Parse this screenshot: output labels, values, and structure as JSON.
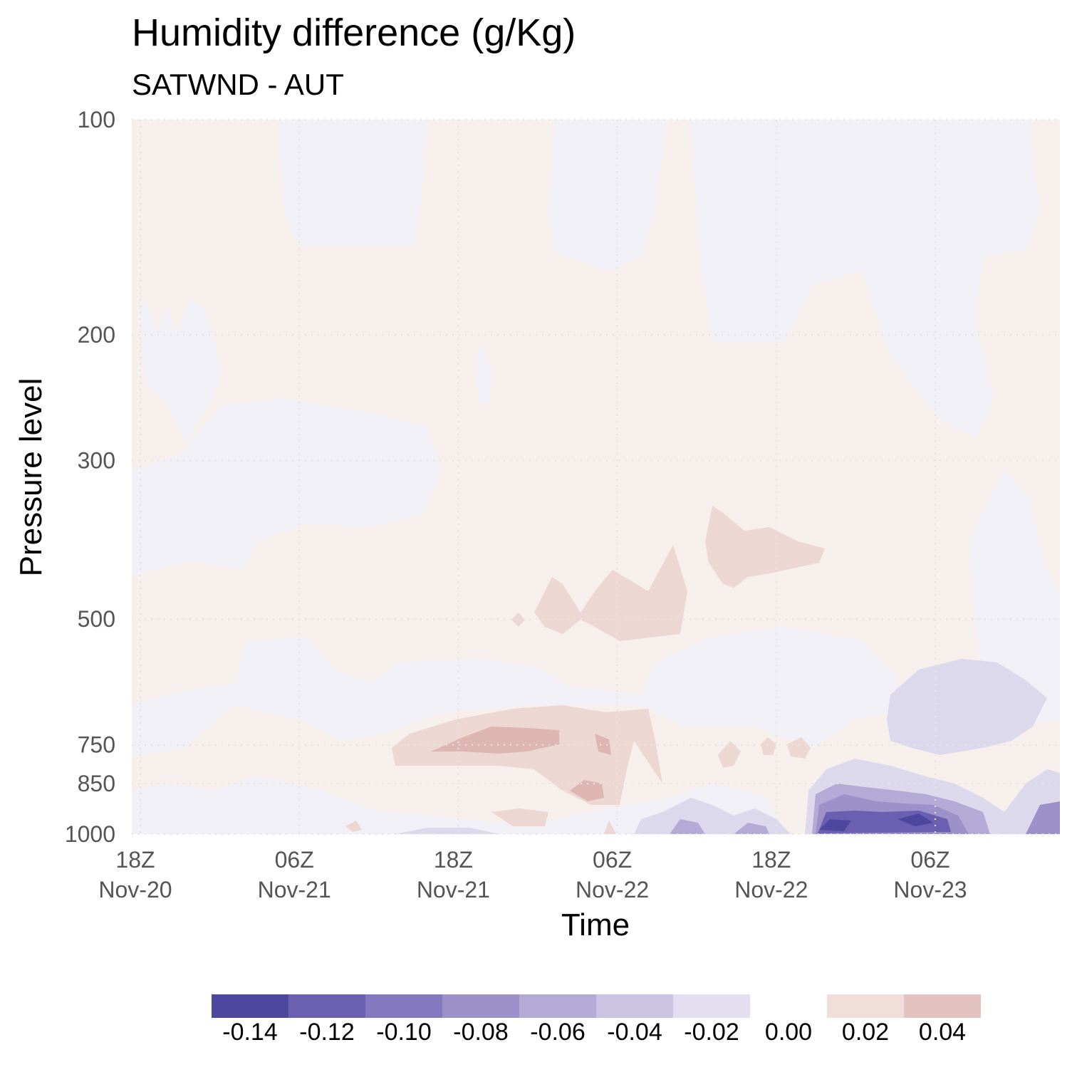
{
  "chart_data": {
    "type": "heatmap",
    "title": "Humidity difference (g/Kg)",
    "subtitle": "SATWND - AUT",
    "xlabel": "Time",
    "ylabel": "Pressure level",
    "x_ticks": [
      {
        "time": "18Z",
        "date": "Nov-20"
      },
      {
        "time": "06Z",
        "date": "Nov-21"
      },
      {
        "time": "18Z",
        "date": "Nov-21"
      },
      {
        "time": "06Z",
        "date": "Nov-22"
      },
      {
        "time": "18Z",
        "date": "Nov-22"
      },
      {
        "time": "06Z",
        "date": "Nov-23"
      }
    ],
    "x_range": [
      "Nov-20 18Z",
      "Nov-23 17Z"
    ],
    "y_scale": "log",
    "y_reversed": true,
    "y_ticks": [
      100,
      200,
      300,
      500,
      750,
      850,
      1000
    ],
    "y_range": [
      100,
      1000
    ],
    "grid": true,
    "legend": "bottom",
    "colorbar": {
      "labels": [
        "-0.14",
        "-0.12",
        "-0.10",
        "-0.08",
        "-0.06",
        "-0.04",
        "-0.02",
        "0.00",
        "0.02",
        "0.04"
      ],
      "colors": [
        "#4e47a0",
        "#6b5fb1",
        "#8478bf",
        "#9c91c9",
        "#b3aad6",
        "#cac3e2",
        "#e3dff0",
        "#ffffff",
        "#f1dedb",
        "#e2c3bf"
      ]
    },
    "field_colors": {
      "slight_negative": "#f1f0f6",
      "slight_positive": "#f7efec",
      "pos_02": "#ecd7d3",
      "pos_04": "#ddb6b2",
      "neg_02": "#ddd9ec",
      "neg_04": "#cac3e2",
      "neg_06": "#b3aad6",
      "neg_08": "#9c91c9",
      "neg_10": "#8478bf",
      "neg_12": "#6b5fb1",
      "neg_14": "#4e47a0"
    }
  }
}
